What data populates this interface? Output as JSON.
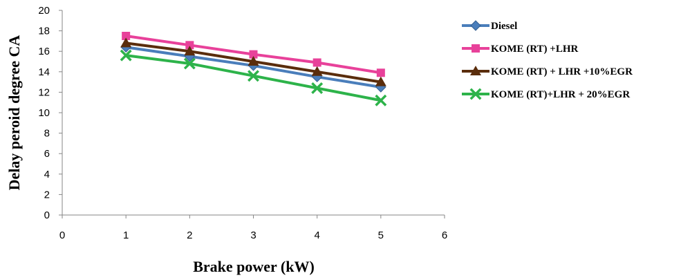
{
  "chart_data": {
    "type": "line",
    "title": "",
    "xlabel": "Brake power (kW)",
    "ylabel": "Delay peroid degree CA",
    "xlim": [
      0,
      6
    ],
    "ylim": [
      0,
      20
    ],
    "xticks": [
      0,
      1,
      2,
      3,
      4,
      5,
      6
    ],
    "yticks": [
      0,
      2,
      4,
      6,
      8,
      10,
      12,
      14,
      16,
      18,
      20
    ],
    "grid": false,
    "legend_position": "right",
    "x": [
      1,
      2,
      3,
      4,
      5
    ],
    "series": [
      {
        "name": "Diesel",
        "values": [
          16.4,
          15.5,
          14.6,
          13.5,
          12.5
        ],
        "color": "#4a7ebb",
        "marker": "diamond"
      },
      {
        "name": "KOME (RT) +LHR",
        "values": [
          17.5,
          16.6,
          15.7,
          14.9,
          13.9
        ],
        "color": "#e8419a",
        "marker": "square"
      },
      {
        "name": "KOME (RT) + LHR +10%EGR",
        "values": [
          16.8,
          16.0,
          15.0,
          14.0,
          13.0
        ],
        "color": "#5a2d0c",
        "marker": "triangle"
      },
      {
        "name": "KOME (RT)+LHR + 20%EGR",
        "values": [
          15.6,
          14.8,
          13.6,
          12.4,
          11.2
        ],
        "color": "#2db34a",
        "marker": "x"
      }
    ]
  }
}
